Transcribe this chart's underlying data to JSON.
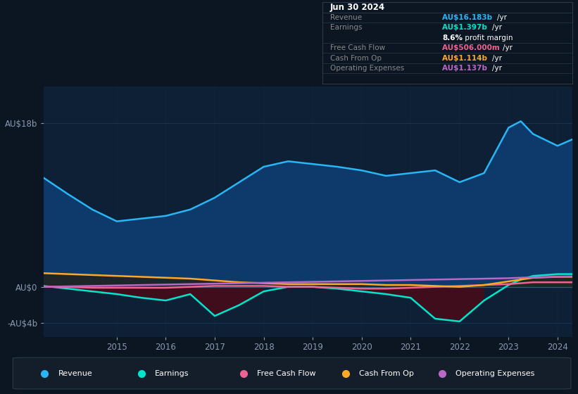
{
  "bg_color": "#0c1622",
  "plot_bg_color": "#0d2035",
  "grid_color": "#1e3a5f",
  "years": [
    2013.5,
    2014.0,
    2014.5,
    2015.0,
    2015.5,
    2016.0,
    2016.5,
    2017.0,
    2017.5,
    2018.0,
    2018.5,
    2019.0,
    2019.5,
    2020.0,
    2020.5,
    2021.0,
    2021.5,
    2022.0,
    2022.5,
    2023.0,
    2023.25,
    2023.5,
    2024.0,
    2024.3
  ],
  "revenue": [
    12.0,
    10.2,
    8.5,
    7.2,
    7.5,
    7.8,
    8.5,
    9.8,
    11.5,
    13.2,
    13.8,
    13.5,
    13.2,
    12.8,
    12.2,
    12.5,
    12.8,
    11.5,
    12.5,
    17.5,
    18.2,
    16.8,
    15.5,
    16.2
  ],
  "earnings": [
    0.1,
    -0.2,
    -0.5,
    -0.8,
    -1.2,
    -1.5,
    -0.8,
    -3.2,
    -2.0,
    -0.5,
    0.0,
    0.0,
    -0.2,
    -0.5,
    -0.8,
    -1.2,
    -3.5,
    -3.8,
    -1.5,
    0.2,
    0.8,
    1.2,
    1.4,
    1.4
  ],
  "free_cash_flow": [
    0.0,
    0.0,
    -0.1,
    -0.1,
    -0.1,
    -0.1,
    0.0,
    0.1,
    0.1,
    0.1,
    0.0,
    0.0,
    -0.1,
    -0.2,
    -0.2,
    -0.1,
    0.0,
    0.1,
    0.2,
    0.3,
    0.4,
    0.5,
    0.5,
    0.5
  ],
  "cash_from_op": [
    1.5,
    1.4,
    1.3,
    1.2,
    1.1,
    1.0,
    0.9,
    0.7,
    0.5,
    0.4,
    0.3,
    0.3,
    0.3,
    0.3,
    0.2,
    0.2,
    0.1,
    0.0,
    0.2,
    0.6,
    0.8,
    1.0,
    1.1,
    1.1
  ],
  "operating_expenses": [
    0.0,
    0.05,
    0.1,
    0.15,
    0.2,
    0.25,
    0.3,
    0.35,
    0.4,
    0.45,
    0.5,
    0.55,
    0.6,
    0.65,
    0.7,
    0.75,
    0.8,
    0.85,
    0.9,
    0.95,
    1.0,
    1.05,
    1.1,
    1.14
  ],
  "revenue_color": "#29b6f6",
  "earnings_color": "#00e5cc",
  "free_cash_flow_color": "#f06292",
  "cash_from_op_color": "#ffa726",
  "operating_expenses_color": "#ba68c8",
  "revenue_fill_color": "#0d3a6a",
  "earnings_fill_neg_color": "#4a0a18",
  "earnings_fill_pos_color": "#004a3a",
  "ylim": [
    -5.5,
    22
  ],
  "yticks": [
    -4,
    0,
    18
  ],
  "ytick_labels": [
    "-AU$4b",
    "AU$0",
    "AU$18b"
  ],
  "xtick_years": [
    2015,
    2016,
    2017,
    2018,
    2019,
    2020,
    2021,
    2022,
    2023,
    2024
  ],
  "legend_items": [
    {
      "label": "Revenue",
      "color": "#29b6f6"
    },
    {
      "label": "Earnings",
      "color": "#00e5cc"
    },
    {
      "label": "Free Cash Flow",
      "color": "#f06292"
    },
    {
      "label": "Cash From Op",
      "color": "#ffa726"
    },
    {
      "label": "Operating Expenses",
      "color": "#ba68c8"
    }
  ],
  "table_bg": "#080c14",
  "table_border": "#2a3a4a",
  "label_color": "#888888",
  "table_title": "Jun 30 2024",
  "table_rows": [
    {
      "label": "Revenue",
      "value": "AU$16.183b",
      "unit": "/yr",
      "color": "#29b6f6"
    },
    {
      "label": "Earnings",
      "value": "AU$1.397b",
      "unit": "/yr",
      "color": "#00e5cc"
    },
    {
      "label": "",
      "value": "8.6%",
      "extra": " profit margin",
      "color": "white"
    },
    {
      "label": "Free Cash Flow",
      "value": "AU$506.000m",
      "unit": "/yr",
      "color": "#f06292"
    },
    {
      "label": "Cash From Op",
      "value": "AU$1.114b",
      "unit": "/yr",
      "color": "#ffa726"
    },
    {
      "label": "Operating Expenses",
      "value": "AU$1.137b",
      "unit": "/yr",
      "color": "#ba68c8"
    }
  ]
}
